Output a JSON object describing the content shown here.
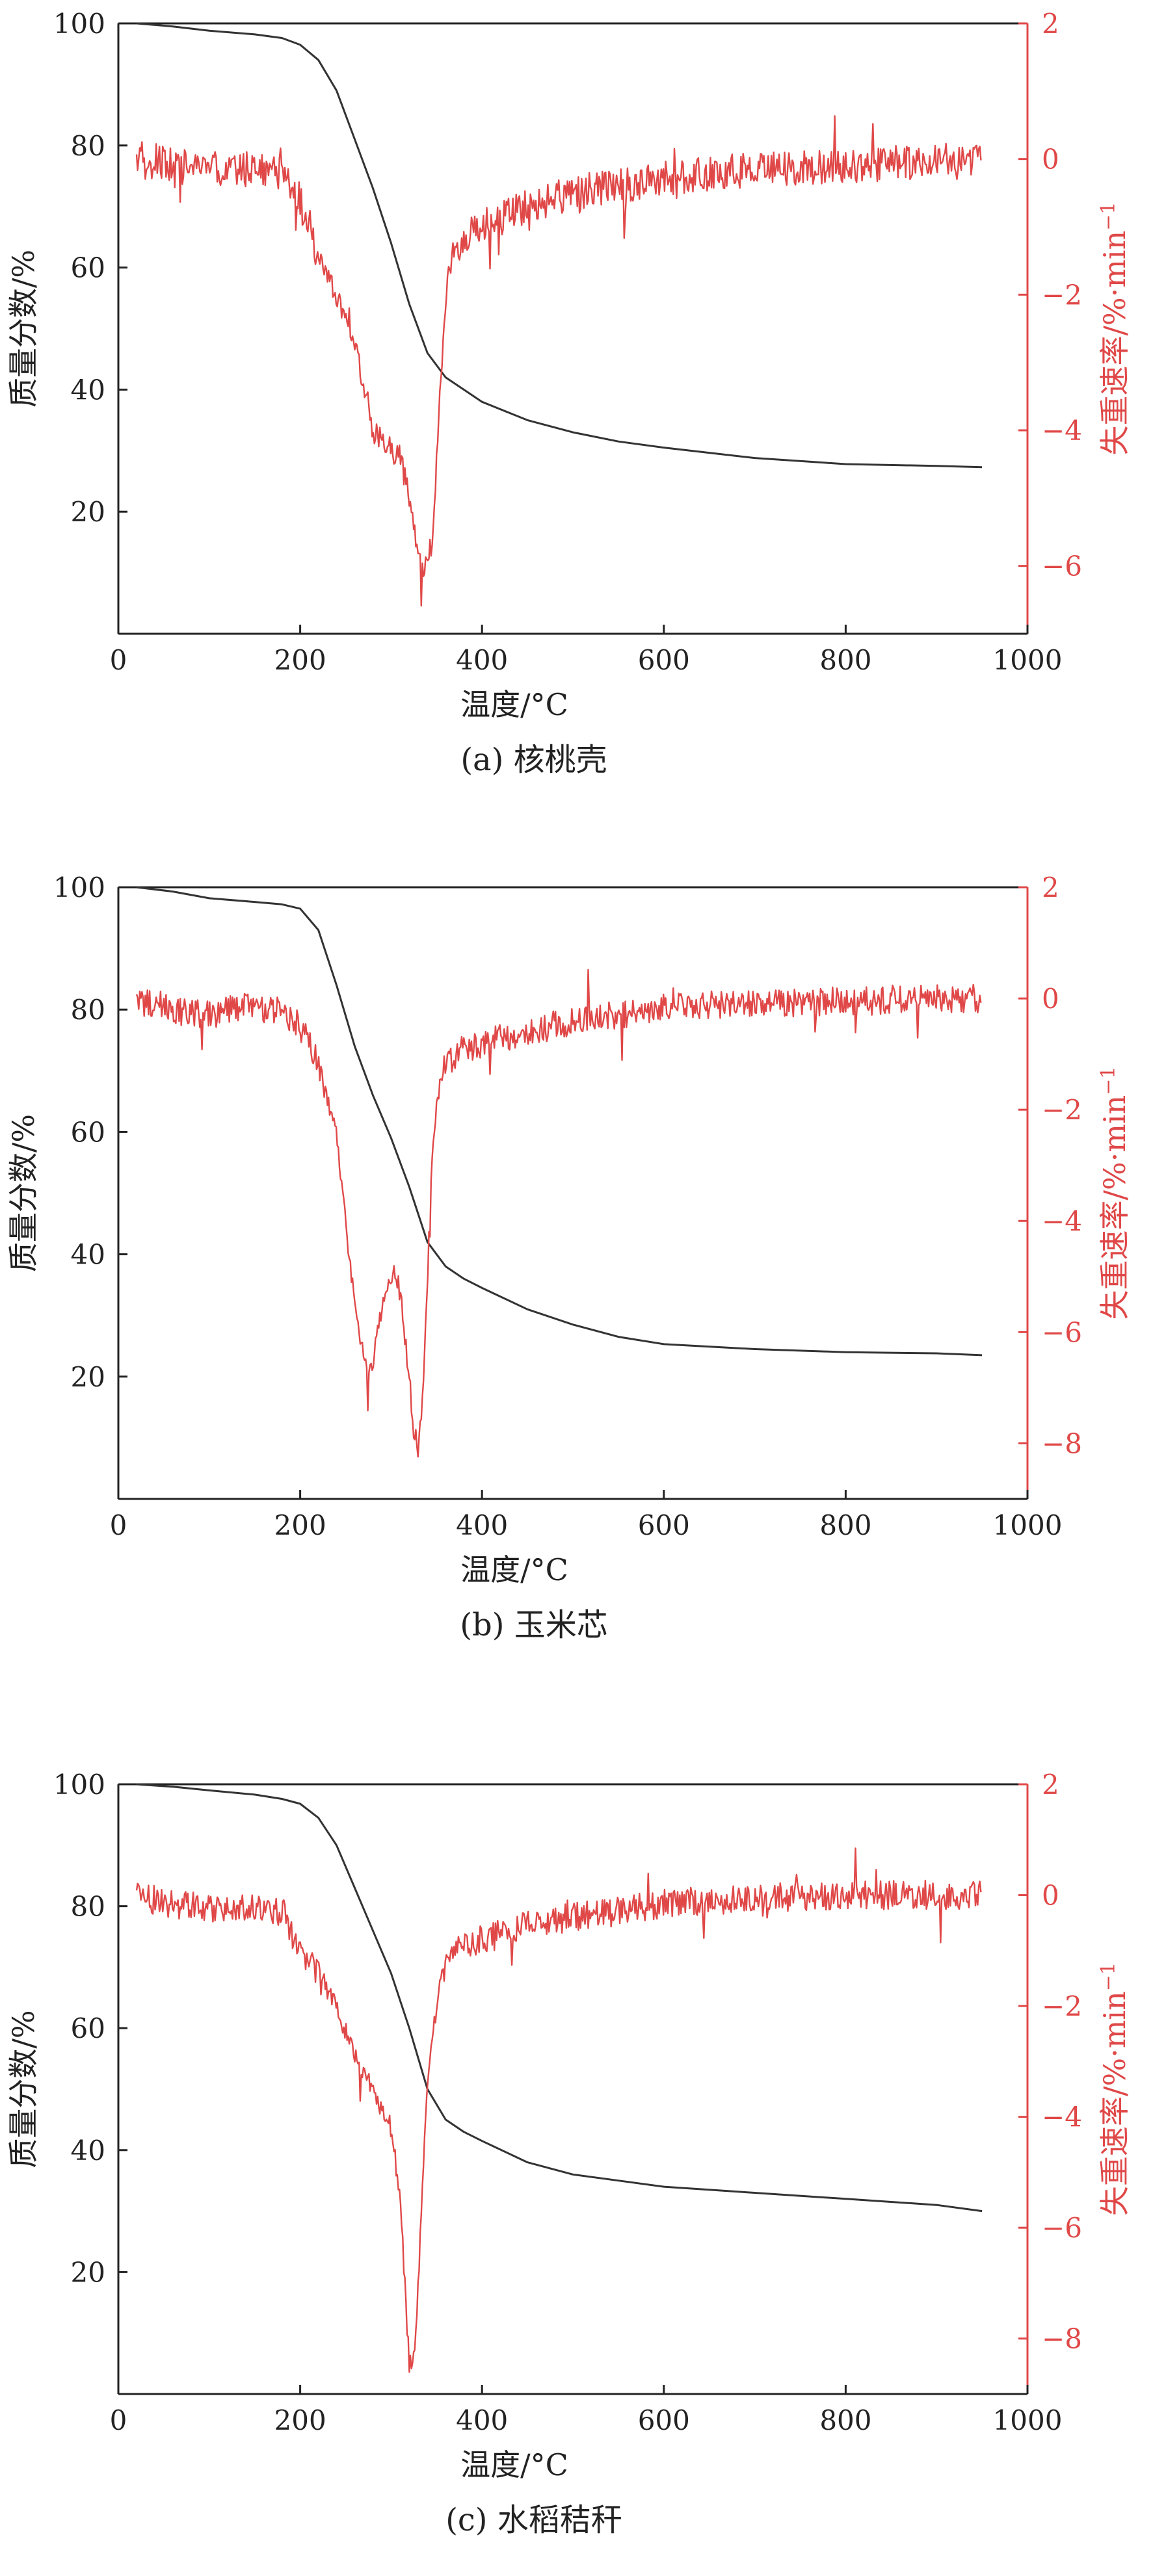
{
  "colors": {
    "mass_curve": "#333333",
    "rate_curve": "#e04848",
    "axis_black": "#222222",
    "axis_red": "#e04848"
  },
  "chart_data": [
    {
      "type": "line",
      "caption": "(a) 核桃壳",
      "xlabel": "温度/°C",
      "ylabel": "质量分数/%",
      "ylabel2": "失重速率/%·min",
      "ylabel2_sup": "−1",
      "xlim": [
        0,
        1000
      ],
      "ylim": [
        0,
        100
      ],
      "y2lim": [
        -7,
        2
      ],
      "xticks": [
        0,
        200,
        400,
        600,
        800,
        1000
      ],
      "yticks": [
        20,
        40,
        60,
        80,
        100
      ],
      "y2ticks": [
        -6,
        -4,
        -2,
        0,
        2
      ],
      "y2tick_labels": [
        "−6",
        "−4",
        "−2",
        "0",
        "2"
      ],
      "grid": false,
      "series": [
        {
          "name": "质量分数",
          "axis": "left",
          "x": [
            20,
            60,
            100,
            150,
            180,
            200,
            220,
            240,
            260,
            280,
            300,
            320,
            340,
            360,
            380,
            400,
            450,
            500,
            550,
            600,
            700,
            800,
            900,
            950
          ],
          "values": [
            100,
            99.5,
            98.8,
            98.2,
            97.6,
            96.5,
            94,
            89,
            81,
            73,
            64,
            54,
            46,
            42,
            40,
            38,
            35,
            33,
            31.5,
            30.5,
            28.8,
            27.8,
            27.5,
            27.3
          ]
        },
        {
          "name": "失重速率",
          "axis": "right",
          "x": [
            20,
            60,
            100,
            140,
            180,
            200,
            210,
            220,
            240,
            260,
            270,
            280,
            290,
            300,
            310,
            320,
            330,
            335,
            340,
            345,
            350,
            355,
            360,
            365,
            370,
            380,
            390,
            400,
            450,
            500,
            550,
            600,
            700,
            800,
            900,
            950
          ],
          "values": [
            0,
            -0.1,
            -0.15,
            -0.15,
            -0.2,
            -0.6,
            -1.1,
            -1.5,
            -2,
            -2.8,
            -3.3,
            -4,
            -4.1,
            -4.3,
            -4.4,
            -5,
            -5.9,
            -6.1,
            -6,
            -5.6,
            -4.5,
            -3.2,
            -2.1,
            -1.5,
            -1.3,
            -1.2,
            -1.1,
            -1,
            -0.7,
            -0.5,
            -0.4,
            -0.3,
            -0.15,
            -0.1,
            -0.05,
            -0.05
          ]
        }
      ]
    },
    {
      "type": "line",
      "caption": "(b) 玉米芯",
      "xlabel": "温度/°C",
      "ylabel": "质量分数/%",
      "ylabel2": "失重速率/%·min",
      "ylabel2_sup": "−1",
      "xlim": [
        0,
        1000
      ],
      "ylim": [
        0,
        100
      ],
      "y2lim": [
        -9,
        2
      ],
      "xticks": [
        0,
        200,
        400,
        600,
        800,
        1000
      ],
      "yticks": [
        20,
        40,
        60,
        80,
        100
      ],
      "y2ticks": [
        -8,
        -6,
        -4,
        -2,
        0,
        2
      ],
      "y2tick_labels": [
        "−8",
        "−6",
        "−4",
        "−2",
        "0",
        "2"
      ],
      "grid": false,
      "series": [
        {
          "name": "质量分数",
          "axis": "left",
          "x": [
            20,
            60,
            100,
            150,
            180,
            200,
            220,
            240,
            260,
            280,
            300,
            320,
            340,
            360,
            380,
            400,
            450,
            500,
            550,
            600,
            700,
            800,
            900,
            950
          ],
          "values": [
            100,
            99.3,
            98.2,
            97.6,
            97.2,
            96.5,
            93,
            84,
            74,
            66,
            59,
            51,
            42,
            38,
            36,
            34.5,
            31,
            28.5,
            26.5,
            25.3,
            24.5,
            24,
            23.8,
            23.5
          ]
        },
        {
          "name": "失重速率",
          "axis": "right",
          "x": [
            20,
            60,
            100,
            140,
            180,
            200,
            220,
            240,
            250,
            260,
            270,
            275,
            280,
            290,
            300,
            305,
            310,
            320,
            325,
            330,
            335,
            340,
            345,
            350,
            360,
            380,
            400,
            450,
            500,
            550,
            600,
            700,
            800,
            900,
            950
          ],
          "values": [
            0,
            -0.2,
            -0.3,
            -0.15,
            -0.2,
            -0.5,
            -1.2,
            -2.5,
            -4,
            -5.5,
            -6.5,
            -6.9,
            -6.5,
            -5.6,
            -5,
            -4.9,
            -5.3,
            -6.8,
            -7.8,
            -8.1,
            -7.2,
            -5,
            -3,
            -1.8,
            -1.2,
            -0.9,
            -0.8,
            -0.6,
            -0.4,
            -0.3,
            -0.15,
            -0.1,
            -0.05,
            0,
            0
          ]
        }
      ]
    },
    {
      "type": "line",
      "caption": "(c) 水稻秸秆",
      "xlabel": "温度/°C",
      "ylabel": "质量分数/%",
      "ylabel2": "失重速率/%·min",
      "ylabel2_sup": "−1",
      "xlim": [
        0,
        1000
      ],
      "ylim": [
        0,
        100
      ],
      "y2lim": [
        -9,
        2
      ],
      "xticks": [
        0,
        200,
        400,
        600,
        800,
        1000
      ],
      "yticks": [
        20,
        40,
        60,
        80,
        100
      ],
      "y2ticks": [
        -8,
        -6,
        -4,
        -2,
        0,
        2
      ],
      "y2tick_labels": [
        "−8",
        "−6",
        "−4",
        "−2",
        "0",
        "2"
      ],
      "grid": false,
      "series": [
        {
          "name": "质量分数",
          "axis": "left",
          "x": [
            20,
            60,
            100,
            150,
            180,
            200,
            220,
            240,
            260,
            280,
            300,
            320,
            340,
            360,
            380,
            400,
            450,
            500,
            550,
            600,
            700,
            800,
            900,
            950
          ],
          "values": [
            100,
            99.6,
            99,
            98.3,
            97.6,
            96.8,
            94.5,
            90,
            83,
            76,
            69,
            60,
            50,
            45,
            43,
            41.5,
            38,
            36,
            35,
            34,
            33,
            32,
            31,
            30
          ]
        },
        {
          "name": "失重速率",
          "axis": "right",
          "x": [
            20,
            60,
            100,
            140,
            180,
            200,
            220,
            240,
            260,
            280,
            300,
            310,
            315,
            320,
            325,
            330,
            335,
            340,
            350,
            360,
            380,
            400,
            450,
            500,
            550,
            600,
            700,
            800,
            900,
            950
          ],
          "values": [
            0,
            -0.15,
            -0.25,
            -0.25,
            -0.3,
            -1,
            -1.4,
            -2,
            -2.9,
            -3.5,
            -4.2,
            -5.5,
            -7,
            -8.5,
            -8.4,
            -7,
            -5,
            -3.5,
            -2,
            -1.2,
            -0.9,
            -0.8,
            -0.5,
            -0.4,
            -0.3,
            -0.15,
            -0.05,
            0,
            0,
            0
          ]
        }
      ]
    }
  ]
}
